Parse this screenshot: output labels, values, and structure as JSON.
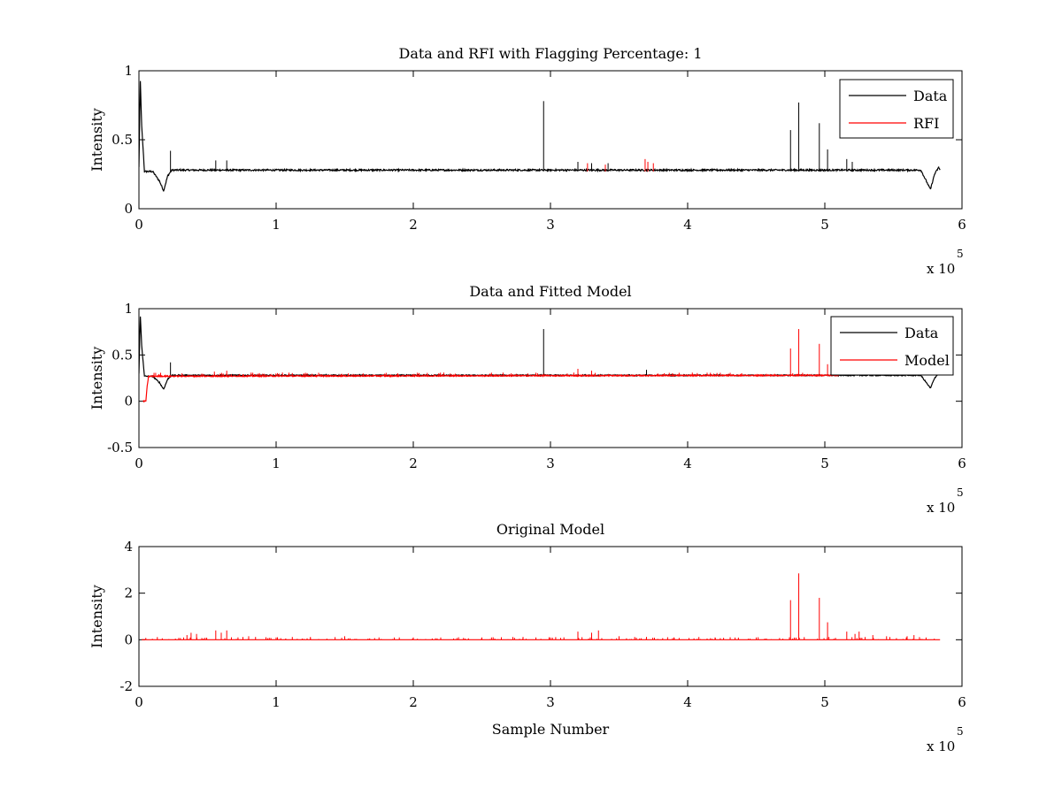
{
  "chart_data": [
    {
      "type": "line",
      "title": "Data and RFI with Flagging Percentage: 1",
      "xlabel": "",
      "ylabel": "Intensity",
      "x_multiplier": "x 10",
      "x_multiplier_exp": "5",
      "xlim": [
        0,
        6
      ],
      "ylim": [
        0,
        1
      ],
      "xticks": [
        "0",
        "1",
        "2",
        "3",
        "4",
        "5",
        "6"
      ],
      "yticks": [
        "0",
        "0.5",
        "1"
      ],
      "legend": {
        "position": "top-right",
        "entries": [
          {
            "name": "Data",
            "color": "#000000"
          },
          {
            "name": "RFI",
            "color": "#ff0000"
          }
        ]
      },
      "series": [
        {
          "name": "Data",
          "color": "#000000",
          "baseline": 0.27,
          "points": [
            [
              0,
              0.3
            ],
            [
              0.01,
              0.92
            ],
            [
              0.02,
              0.6
            ],
            [
              0.04,
              0.27
            ],
            [
              0.1,
              0.27
            ],
            [
              0.15,
              0.2
            ],
            [
              0.18,
              0.13
            ],
            [
              0.21,
              0.24
            ],
            [
              0.24,
              0.28
            ],
            [
              0.3,
              0.28
            ],
            [
              5.7,
              0.28
            ],
            [
              5.74,
              0.2
            ],
            [
              5.77,
              0.14
            ],
            [
              5.8,
              0.25
            ],
            [
              5.83,
              0.3
            ],
            [
              5.84,
              0.28
            ]
          ],
          "spikes": [
            [
              0.23,
              0.42
            ],
            [
              0.56,
              0.35
            ],
            [
              0.64,
              0.35
            ],
            [
              2.95,
              0.78
            ],
            [
              3.2,
              0.34
            ],
            [
              3.3,
              0.33
            ],
            [
              3.42,
              0.33
            ],
            [
              4.75,
              0.57
            ],
            [
              4.81,
              0.77
            ],
            [
              4.96,
              0.62
            ],
            [
              5.02,
              0.43
            ],
            [
              5.16,
              0.36
            ],
            [
              5.2,
              0.34
            ]
          ]
        },
        {
          "name": "RFI",
          "color": "#ff0000",
          "spikes": [
            [
              3.27,
              0.33
            ],
            [
              3.4,
              0.32
            ],
            [
              3.69,
              0.36
            ],
            [
              3.71,
              0.34
            ],
            [
              3.75,
              0.33
            ]
          ]
        }
      ]
    },
    {
      "type": "line",
      "title": "Data and Fitted Model",
      "xlabel": "",
      "ylabel": "Intensity",
      "x_multiplier": "x 10",
      "x_multiplier_exp": "5",
      "xlim": [
        0,
        6
      ],
      "ylim": [
        -0.5,
        1
      ],
      "xticks": [
        "0",
        "1",
        "2",
        "3",
        "4",
        "5",
        "6"
      ],
      "yticks": [
        "-0.5",
        "0",
        "0.5",
        "1"
      ],
      "legend": {
        "position": "top-right",
        "entries": [
          {
            "name": "Data",
            "color": "#000000"
          },
          {
            "name": "Model",
            "color": "#ff0000"
          }
        ]
      },
      "series": [
        {
          "name": "Data",
          "color": "#000000",
          "points": [
            [
              0,
              0.3
            ],
            [
              0.01,
              0.92
            ],
            [
              0.02,
              0.6
            ],
            [
              0.04,
              0.27
            ],
            [
              0.1,
              0.27
            ],
            [
              0.15,
              0.2
            ],
            [
              0.18,
              0.13
            ],
            [
              0.21,
              0.24
            ],
            [
              0.24,
              0.28
            ],
            [
              0.3,
              0.28
            ],
            [
              5.7,
              0.28
            ],
            [
              5.74,
              0.2
            ],
            [
              5.77,
              0.14
            ],
            [
              5.8,
              0.25
            ],
            [
              5.83,
              0.3
            ],
            [
              5.84,
              0.28
            ]
          ],
          "spikes": [
            [
              0.23,
              0.42
            ],
            [
              2.95,
              0.78
            ],
            [
              3.7,
              0.34
            ]
          ]
        },
        {
          "name": "Model",
          "color": "#ff0000",
          "points": [
            [
              0.03,
              0.0
            ],
            [
              0.05,
              0.0
            ],
            [
              0.06,
              0.16
            ],
            [
              0.07,
              0.27
            ],
            [
              0.1,
              0.27
            ],
            [
              5.1,
              0.28
            ]
          ],
          "spikes": [
            [
              0.55,
              0.32
            ],
            [
              0.64,
              0.33
            ],
            [
              3.2,
              0.35
            ],
            [
              3.3,
              0.33
            ],
            [
              4.75,
              0.57
            ],
            [
              4.81,
              0.78
            ],
            [
              4.96,
              0.62
            ],
            [
              5.02,
              0.4
            ]
          ]
        }
      ]
    },
    {
      "type": "line",
      "title": "Original Model",
      "xlabel": "Sample Number",
      "ylabel": "Intensity",
      "x_multiplier": "x 10",
      "x_multiplier_exp": "5",
      "xlim": [
        0,
        6
      ],
      "ylim": [
        -2,
        4
      ],
      "xticks": [
        "0",
        "1",
        "2",
        "3",
        "4",
        "5",
        "6"
      ],
      "yticks": [
        "-2",
        "0",
        "2",
        "4"
      ],
      "series": [
        {
          "name": "",
          "color": "#ff0000",
          "points": [
            [
              0.02,
              0
            ],
            [
              5.84,
              0
            ]
          ],
          "spikes": [
            [
              0.35,
              0.2
            ],
            [
              0.38,
              0.3
            ],
            [
              0.42,
              0.25
            ],
            [
              0.56,
              0.4
            ],
            [
              0.6,
              0.3
            ],
            [
              0.64,
              0.4
            ],
            [
              0.8,
              0.15
            ],
            [
              0.85,
              0.12
            ],
            [
              1.0,
              0.1
            ],
            [
              1.25,
              0.12
            ],
            [
              1.5,
              0.15
            ],
            [
              1.75,
              0.1
            ],
            [
              2.0,
              0.1
            ],
            [
              2.2,
              0.1
            ],
            [
              2.5,
              0.1
            ],
            [
              2.8,
              0.12
            ],
            [
              3.0,
              0.1
            ],
            [
              3.2,
              0.35
            ],
            [
              3.3,
              0.3
            ],
            [
              3.35,
              0.4
            ],
            [
              3.5,
              0.15
            ],
            [
              3.7,
              0.12
            ],
            [
              3.9,
              0.1
            ],
            [
              4.2,
              0.1
            ],
            [
              4.5,
              0.1
            ],
            [
              4.75,
              1.7
            ],
            [
              4.81,
              2.85
            ],
            [
              4.96,
              1.8
            ],
            [
              5.02,
              0.75
            ],
            [
              5.16,
              0.35
            ],
            [
              5.22,
              0.25
            ],
            [
              5.25,
              0.35
            ],
            [
              5.35,
              0.2
            ],
            [
              5.45,
              0.15
            ],
            [
              5.6,
              0.15
            ],
            [
              5.65,
              0.2
            ]
          ]
        }
      ]
    }
  ]
}
